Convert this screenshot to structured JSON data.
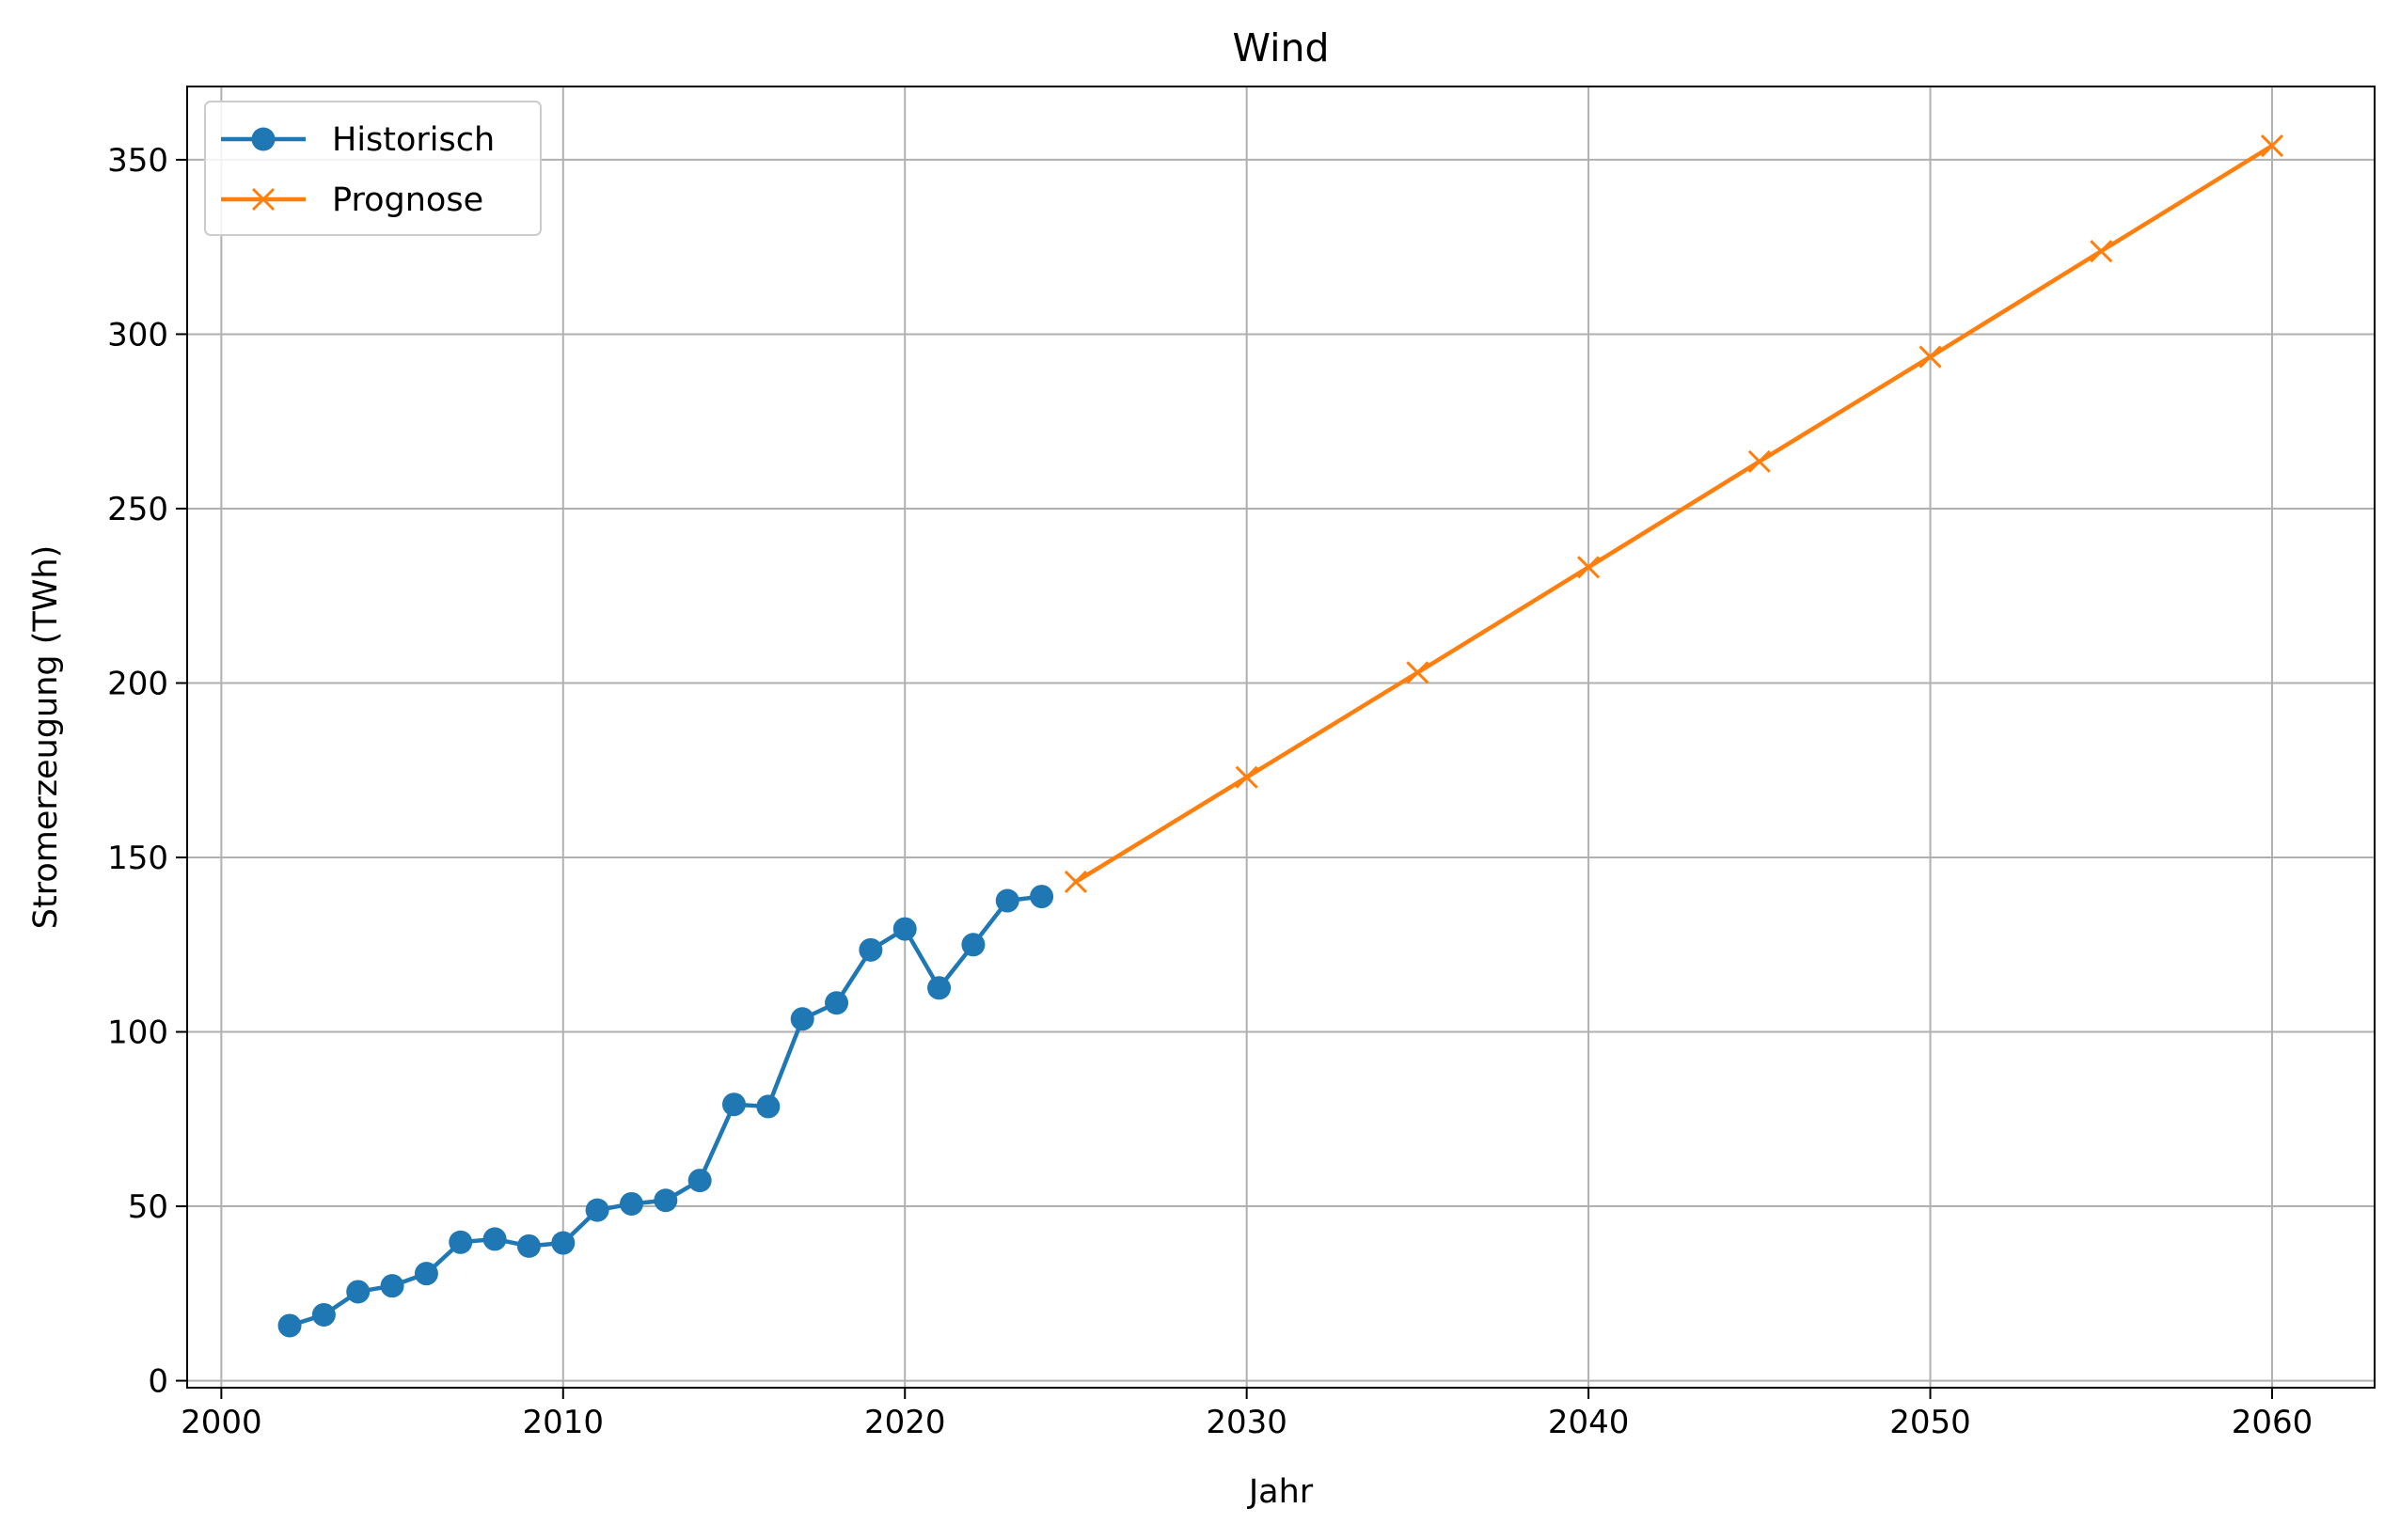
{
  "chart_data": {
    "type": "line",
    "title": "Wind",
    "xlabel": "Jahr",
    "ylabel": "Stromerzeugung (TWh)",
    "xlim": [
      1999,
      2063
    ],
    "ylim": [
      -2,
      371
    ],
    "xticks": [
      2000,
      2010,
      2020,
      2030,
      2040,
      2050,
      2060
    ],
    "yticks": [
      0,
      50,
      100,
      150,
      200,
      250,
      300,
      350
    ],
    "grid": true,
    "legend_position": "upper-left",
    "series": [
      {
        "name": "Historisch",
        "color": "#1f77b4",
        "marker": "circle",
        "x": [
          2002,
          2003,
          2004,
          2005,
          2006,
          2007,
          2008,
          2009,
          2010,
          2011,
          2012,
          2013,
          2014,
          2015,
          2016,
          2017,
          2018,
          2019,
          2020,
          2021,
          2022,
          2023,
          2024
        ],
        "y": [
          15.8,
          18.9,
          25.5,
          27.2,
          30.7,
          39.7,
          40.6,
          38.6,
          39.5,
          48.9,
          50.7,
          51.7,
          57.4,
          79.2,
          78.6,
          103.7,
          108.3,
          123.5,
          129.5,
          112.6,
          125.0,
          137.6,
          138.8
        ]
      },
      {
        "name": "Prognose",
        "color": "#ff7f0e",
        "marker": "x",
        "x": [
          2025,
          2030,
          2035,
          2040,
          2045,
          2050,
          2055,
          2060
        ],
        "y": [
          143.0,
          173.0,
          203.0,
          233.2,
          263.5,
          293.5,
          323.8,
          354.0
        ]
      }
    ]
  }
}
